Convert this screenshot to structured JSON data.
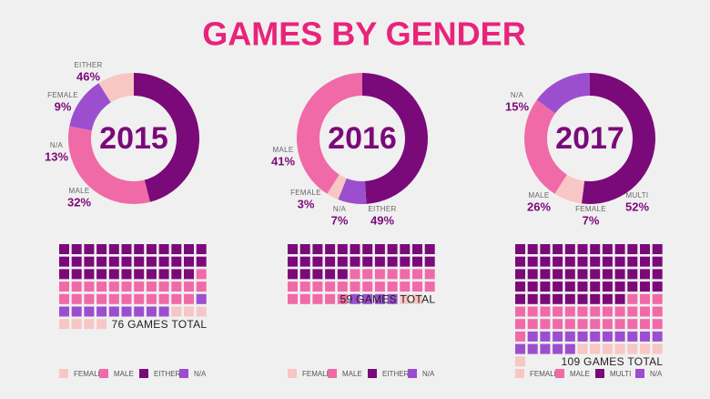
{
  "title": "GAMES BY GENDER",
  "chart_data": [
    {
      "type": "pie",
      "title": "2015",
      "categories": [
        "EITHER",
        "MALE",
        "N/A",
        "FEMALE"
      ],
      "values": [
        46,
        32,
        13,
        9
      ],
      "value_labels": [
        "46%",
        "32%",
        "13%",
        "9%"
      ],
      "colors": [
        "#7a0a7a",
        "#f06aa8",
        "#9b4fcf",
        "#f7c6c5"
      ],
      "counts": [
        35,
        24,
        10,
        7
      ],
      "total_label": "76 GAMES TOTAL"
    },
    {
      "type": "pie",
      "title": "2016",
      "categories": [
        "EITHER",
        "N/A",
        "FEMALE",
        "MALE"
      ],
      "values": [
        49,
        7,
        3,
        41
      ],
      "value_labels": [
        "49%",
        "7%",
        "3%",
        "41%"
      ],
      "colors": [
        "#7a0a7a",
        "#9b4fcf",
        "#f7c6c5",
        "#f06aa8"
      ],
      "counts": [
        29,
        4,
        2,
        24
      ],
      "total_label": "59 GAMES TOTAL"
    },
    {
      "type": "pie",
      "title": "2017",
      "categories": [
        "MULTI",
        "FEMALE",
        "MALE",
        "N/A"
      ],
      "values": [
        52,
        7,
        26,
        15
      ],
      "value_labels": [
        "52%",
        "7%",
        "26%",
        "15%"
      ],
      "colors": [
        "#7a0a7a",
        "#f7c6c5",
        "#f06aa8",
        "#9b4fcf"
      ],
      "counts": [
        57,
        8,
        28,
        16
      ],
      "total_label": "109 GAMES TOTAL"
    }
  ]
}
